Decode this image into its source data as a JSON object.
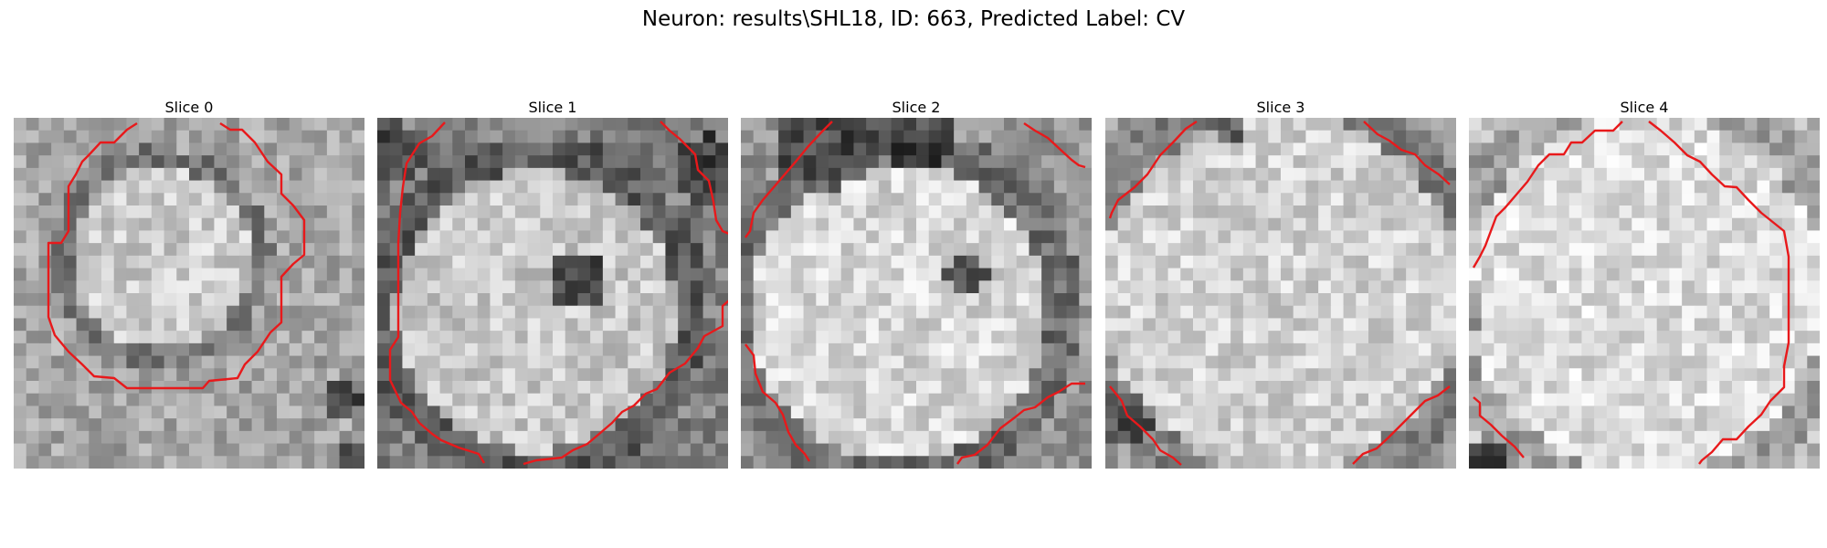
{
  "title": "Neuron: results\\SHL18, ID: 663, Predicted Label: CV",
  "panels": [
    {
      "label": "Slice 0"
    },
    {
      "label": "Slice 1"
    },
    {
      "label": "Slice 2"
    },
    {
      "label": "Slice 3"
    },
    {
      "label": "Slice 4"
    }
  ],
  "colors": {
    "contour": "#e8191b",
    "background": "#ffffff"
  }
}
